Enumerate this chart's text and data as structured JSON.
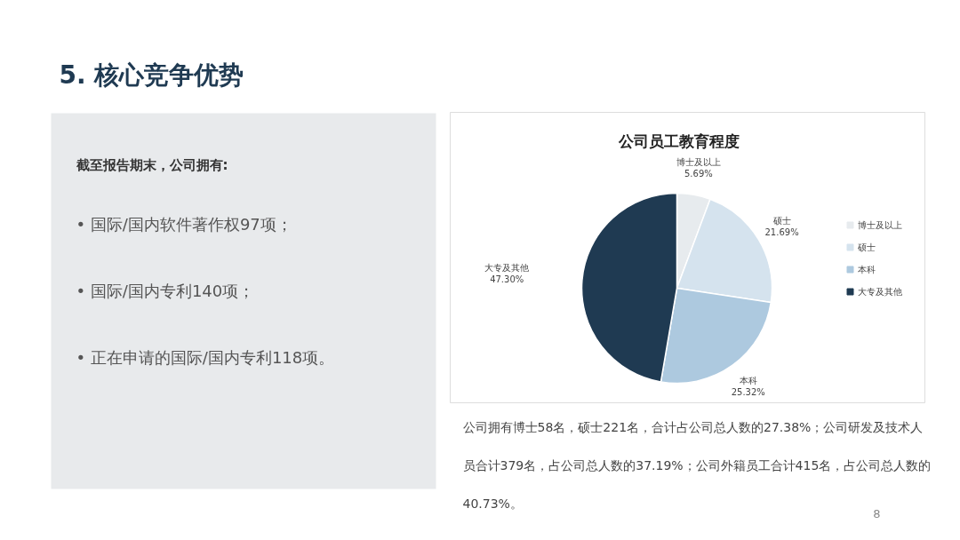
{
  "chart_data": {
    "type": "pie",
    "title": "公司员工教育程度",
    "categories": [
      "博士及以上",
      "硕士",
      "本科",
      "大专及其他"
    ],
    "values": [
      5.69,
      21.69,
      25.32,
      47.3
    ],
    "value_labels": [
      "5.69%",
      "21.69%",
      "25.32%",
      "47.30%"
    ],
    "colors": [
      "#e7ebee",
      "#d5e3ee",
      "#adc9df",
      "#1f3a52"
    ],
    "legend": "right",
    "annotations": [
      "5. 核心竞争优势",
      "截至报告期末，公司拥有:",
      "•   国际/国内软件著作权97项；",
      "•   国际/国内专利140项；",
      "•   正在申请的国际/国内专利118项。",
      "公司拥有博士58名，硕士221名，合计占公司总人数的27.38%；公司研发及技术人员合计379名，占公司总人数的37.19%；公司外籍员工合计415名，占公司总人数的40.73%。",
      "8"
    ]
  }
}
